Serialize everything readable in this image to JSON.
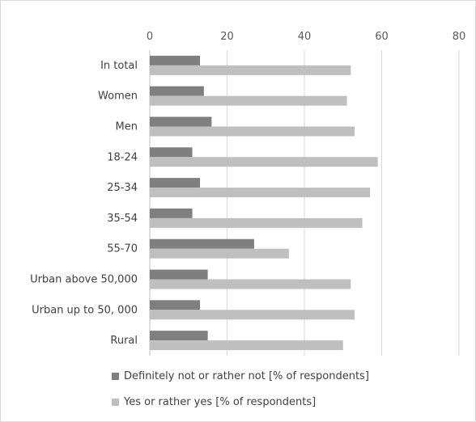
{
  "chart_data": {
    "type": "bar",
    "orientation": "horizontal",
    "title": "",
    "xlabel": "",
    "ylabel": "",
    "xlim": [
      0,
      80
    ],
    "x_ticks": [
      0,
      20,
      40,
      60,
      80
    ],
    "x_axis_position": "top",
    "grid": true,
    "legend_position": "bottom",
    "categories": [
      "In total",
      "Women",
      "Men",
      "18-24",
      "25-34",
      "35-54",
      "55-70",
      "Urban above 50,000",
      "Urban up to 50, 000",
      "Rural"
    ],
    "series": [
      {
        "name": "Definitely not or rather not [% of respondents]",
        "color": "#7f7f7f",
        "values": [
          13,
          14,
          16,
          11,
          13,
          11,
          27,
          15,
          13,
          15
        ]
      },
      {
        "name": "Yes or rather yes [% of respondents]",
        "color": "#bfbfbf",
        "values": [
          52,
          51,
          53,
          59,
          57,
          55,
          36,
          52,
          53,
          50
        ]
      }
    ]
  }
}
